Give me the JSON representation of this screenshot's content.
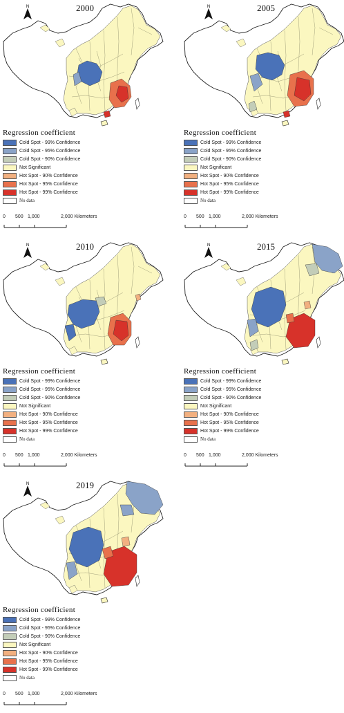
{
  "legend": {
    "title": "Regression coefficient",
    "items": [
      {
        "label": "Cold Spot - 99% Confidence",
        "color": "#4a72b8"
      },
      {
        "label": "Cold Spot - 95% Confidence",
        "color": "#8aa3c8"
      },
      {
        "label": "Cold Spot - 90% Confidence",
        "color": "#c3cdb8"
      },
      {
        "label": "Not Significant",
        "color": "#fbf7c0"
      },
      {
        "label": "Hot Spot - 90% Confidence",
        "color": "#f2b080"
      },
      {
        "label": "Hot Spot - 95% Confidence",
        "color": "#e8714c"
      },
      {
        "label": "Hot Spot - 99% Confidence",
        "color": "#d7322a"
      },
      {
        "label": "No data",
        "color": "#ffffff"
      }
    ]
  },
  "scale": {
    "t0": "0",
    "t1": "500",
    "t2": "1,000",
    "t3": "2,000 Kilometers"
  },
  "north_label": "N",
  "panels": [
    {
      "year": "2000"
    },
    {
      "year": "2005"
    },
    {
      "year": "2010"
    },
    {
      "year": "2015"
    },
    {
      "year": "2019"
    }
  ]
}
